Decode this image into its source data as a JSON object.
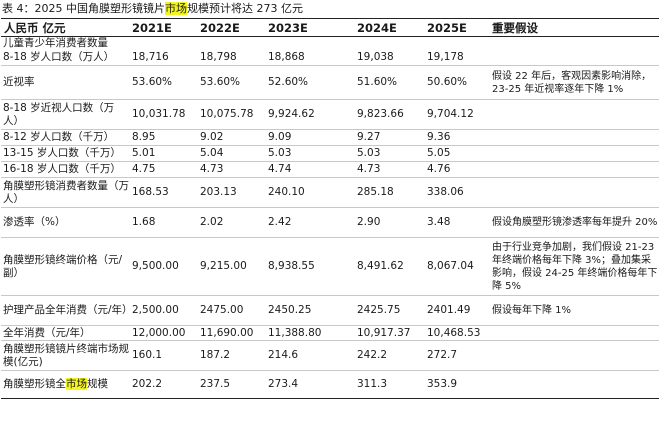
{
  "caption": {
    "prefix": "表 4：2025 中国角膜塑形镜镜片",
    "highlight": "市场",
    "suffix": "规模预计将达 273 亿元"
  },
  "header": [
    "人民币 亿元",
    "2021E",
    "2022E",
    "2023E",
    "2024E",
    "2025E",
    "重要假设"
  ],
  "rows": [
    {
      "label": "儿童青少年消费者数量",
      "values": [
        "",
        "",
        "",
        "",
        ""
      ],
      "note": "",
      "height": 14
    },
    {
      "label": "8-18 岁人口数（万人）",
      "values": [
        "18,716",
        "18,798",
        "18,868",
        "19,038",
        "19,178"
      ],
      "note": "",
      "height": 15
    },
    {
      "label": "近视率",
      "values": [
        "53.60%",
        "53.60%",
        "52.60%",
        "51.60%",
        "50.60%"
      ],
      "note": "假设 22 年后，客观因素影响消除，23-25 年近视率逐年下降 1%",
      "height": 34
    },
    {
      "label": "8-18 岁近视人口数（万人）",
      "values": [
        "10,031.78",
        "10,075.78",
        "9,924.62",
        "9,823.66",
        "9,704.12"
      ],
      "note": "",
      "height": 30
    },
    {
      "label": "8-12 岁人口数（千万）",
      "values": [
        "8.95",
        "9.02",
        "9.09",
        "9.27",
        "9.36"
      ],
      "note": "",
      "height": 16
    },
    {
      "label": "13-15 岁人口数（千万）",
      "values": [
        "5.01",
        "5.04",
        "5.03",
        "5.03",
        "5.05"
      ],
      "note": "",
      "height": 16
    },
    {
      "label": "16-18 岁人口数（千万）",
      "values": [
        "4.75",
        "4.73",
        "4.74",
        "4.73",
        "4.76"
      ],
      "note": "",
      "height": 16
    },
    {
      "label": "角膜塑形镜消费者数量（万人）",
      "values": [
        "168.53",
        "203.13",
        "240.10",
        "285.18",
        "338.06"
      ],
      "note": "",
      "height": 30
    },
    {
      "label": "渗透率（%）",
      "values": [
        "1.68",
        "2.02",
        "2.42",
        "2.90",
        "3.48"
      ],
      "note": "假设角膜塑形镜渗透率每年提升 20%",
      "height": 30
    },
    {
      "label": "角膜塑形镜终端价格（元/副）",
      "values": [
        "9,500.00",
        "9,215.00",
        "8,938.55",
        "8,491.62",
        "8,067.04"
      ],
      "note": "由于行业竞争加剧，我们假设 21-23 年终端价格每年下降 3%；叠加集采影响，假设 24-25 年终端价格每年下降 5%",
      "height": 58
    },
    {
      "label": "护理产品全年消费（元/年）",
      "values": [
        "2,500.00",
        "2475.00",
        "2450.25",
        "2425.75",
        "2401.49"
      ],
      "note": "假设每年下降 1%",
      "height": 30
    },
    {
      "label": "全年消费（元/年）",
      "values": [
        "12,000.00",
        "11,690.00",
        "11,388.80",
        "10,917.37",
        "10,468.53"
      ],
      "note": "",
      "height": 15
    },
    {
      "label": "角膜塑形镜镜片终端市场规模(亿元)",
      "values": [
        "160.1",
        "187.2",
        "214.6",
        "242.2",
        "272.7"
      ],
      "note": "",
      "height": 30
    },
    {
      "label_prefix": "角膜塑形镜全",
      "label_highlight": "市场",
      "label_suffix": "规模",
      "values": [
        "202.2",
        "237.5",
        "273.4",
        "311.3",
        "353.9"
      ],
      "note": "",
      "height": 28
    }
  ]
}
